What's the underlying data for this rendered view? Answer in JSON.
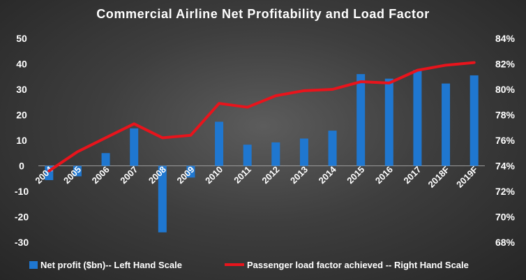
{
  "chart_data": {
    "type": "bar",
    "title": "Commercial Airline Net Profitability and Load Factor",
    "categories": [
      "2004",
      "2005",
      "2006",
      "2007",
      "2008",
      "2009",
      "2010",
      "2011",
      "2012",
      "2013",
      "2014",
      "2015",
      "2016",
      "2017",
      "2018F",
      "2019F"
    ],
    "series": [
      {
        "name": "Net profit  ($bn)-- Left Hand Scale",
        "type": "bar",
        "axis": "left",
        "color": "#1f77d0",
        "values": [
          -5.6,
          -4.1,
          5.0,
          14.7,
          -26.1,
          -4.6,
          17.3,
          8.3,
          9.2,
          10.7,
          13.8,
          36.0,
          34.2,
          37.6,
          32.3,
          35.5
        ]
      },
      {
        "name": "Passenger load factor achieved -- Right Hand Scale",
        "type": "line",
        "axis": "right",
        "color": "#e8141c",
        "values": [
          73.6,
          75.1,
          76.2,
          77.3,
          76.2,
          76.4,
          78.9,
          78.6,
          79.5,
          79.9,
          80.0,
          80.6,
          80.5,
          81.5,
          81.9,
          82.1
        ]
      }
    ],
    "y_left": {
      "ylim": [
        -30,
        50
      ],
      "ticks": [
        "50",
        "40",
        "30",
        "20",
        "10",
        "0",
        "-10",
        "-20",
        "-30"
      ]
    },
    "y_right": {
      "ylim": [
        68,
        84
      ],
      "ticks": [
        "84%",
        "82%",
        "80%",
        "78%",
        "76%",
        "74%",
        "72%",
        "70%",
        "68%"
      ]
    },
    "grid": false,
    "legend_position": "bottom"
  }
}
